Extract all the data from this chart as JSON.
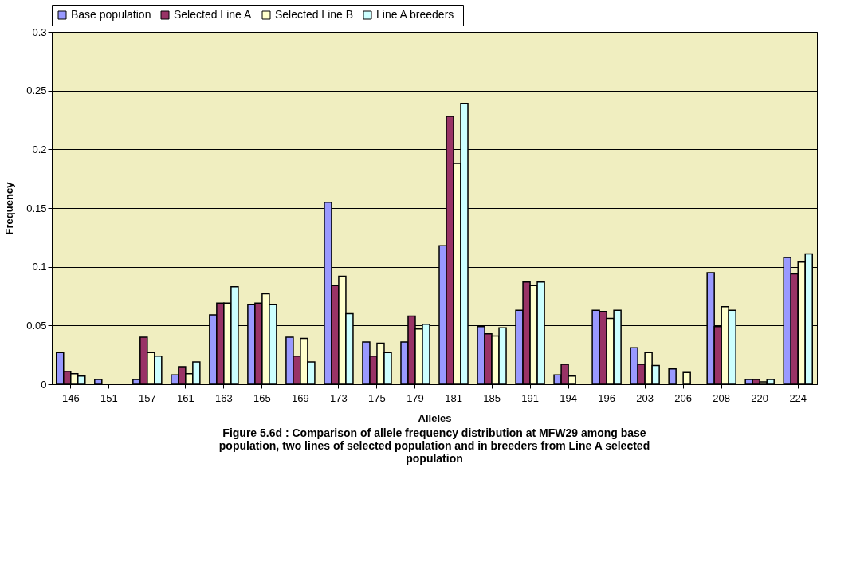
{
  "chart_data": {
    "type": "bar",
    "xlabel": "Alleles",
    "ylabel": "Frequency",
    "categories": [
      "146",
      "151",
      "157",
      "161",
      "163",
      "165",
      "169",
      "173",
      "175",
      "179",
      "181",
      "185",
      "191",
      "194",
      "196",
      "203",
      "206",
      "208",
      "220",
      "224"
    ],
    "series": [
      {
        "name": "Base population",
        "color": "#9999ff",
        "values": [
          0.027,
          0.004,
          0.004,
          0.008,
          0.059,
          0.068,
          0.04,
          0.155,
          0.036,
          0.036,
          0.118,
          0.049,
          0.063,
          0.008,
          0.063,
          0.031,
          0.013,
          0.095,
          0.004,
          0.108
        ]
      },
      {
        "name": "Selected Line A",
        "color": "#993366",
        "values": [
          0.011,
          null,
          0.04,
          0.015,
          0.069,
          0.069,
          0.024,
          0.084,
          0.024,
          0.058,
          0.228,
          0.043,
          0.087,
          0.017,
          0.062,
          0.017,
          null,
          0.049,
          0.004,
          0.094
        ]
      },
      {
        "name": "Selected Line B",
        "color": "#ffffcc",
        "values": [
          0.009,
          null,
          0.027,
          0.009,
          0.069,
          0.077,
          0.039,
          0.092,
          0.035,
          0.047,
          0.188,
          0.041,
          0.084,
          0.007,
          0.056,
          0.027,
          0.01,
          0.066,
          0.002,
          0.104
        ]
      },
      {
        "name": "Line A  breeders",
        "color": "#ccffff",
        "values": [
          0.007,
          null,
          0.024,
          0.019,
          0.083,
          0.068,
          0.019,
          0.06,
          0.027,
          0.051,
          0.239,
          0.048,
          0.087,
          null,
          0.063,
          0.016,
          null,
          0.063,
          0.004,
          0.111
        ]
      }
    ],
    "ylim": [
      0,
      0.3
    ],
    "yticks": [
      0,
      0.05,
      0.1,
      0.15,
      0.2,
      0.25,
      0.3
    ],
    "grid": "y",
    "legend": "top",
    "annotations": [
      "Figure 5.6d : Comparison of allele frequency distribution at MFW29 among base population, two lines of selected population and in breeders from Line A selected population"
    ]
  }
}
